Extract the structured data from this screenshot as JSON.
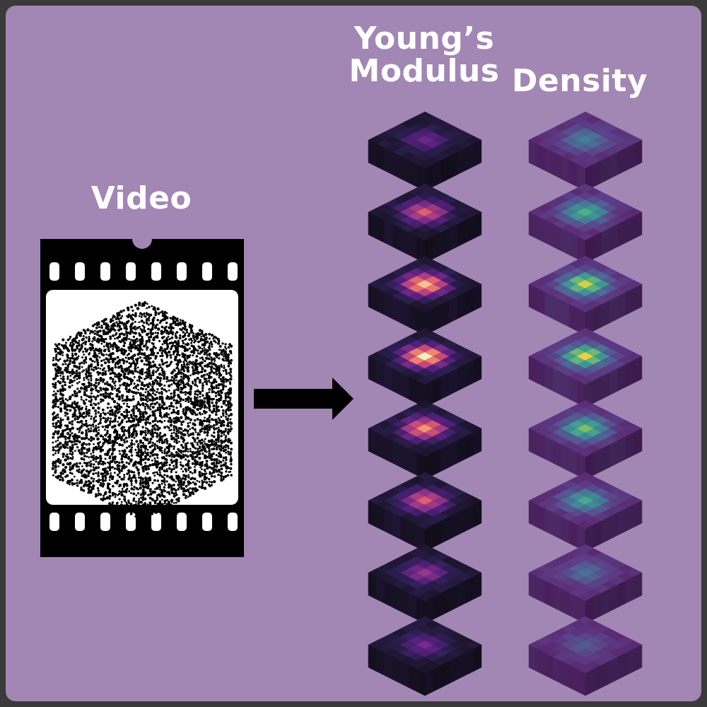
{
  "labels": {
    "video": "Video",
    "youngs_modulus": "Young’s Modulus",
    "density": "Density"
  },
  "colors": {
    "background": "#a286b3",
    "film": "#000000",
    "frame": "#ffffff",
    "arrow": "#000000",
    "label_text": "#ffffff"
  },
  "colormaps": {
    "youngs_modulus": "magma",
    "density": "viridis"
  },
  "slice_peaks": {
    "youngs_modulus": [
      0.3,
      0.62,
      0.9,
      0.98,
      0.78,
      0.62,
      0.42,
      0.32
    ],
    "density": [
      0.45,
      0.7,
      0.98,
      0.99,
      0.8,
      0.62,
      0.32,
      0.25
    ]
  },
  "icons": [
    "film-strip-icon",
    "right-arrow-icon",
    "particle-cube-icon"
  ]
}
